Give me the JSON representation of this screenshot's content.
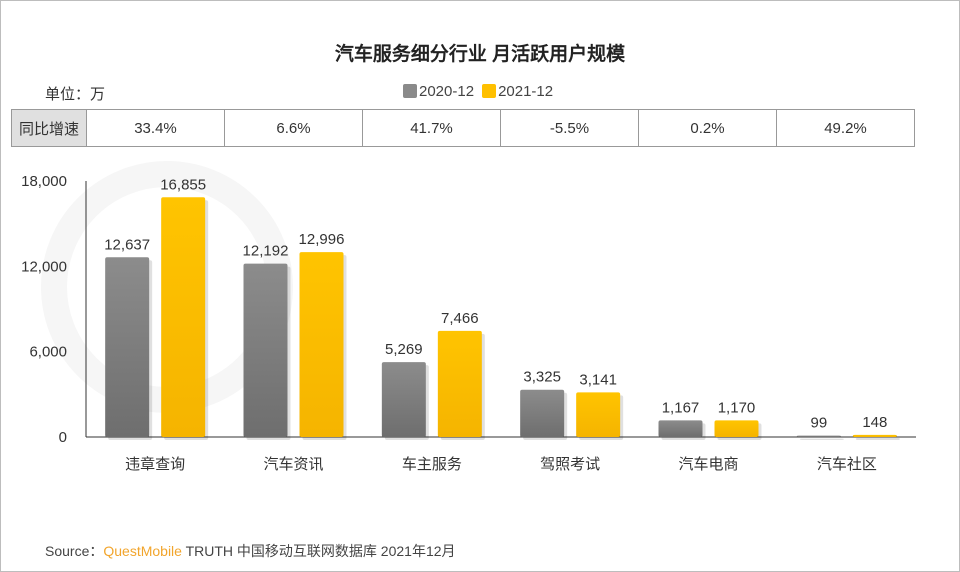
{
  "title": "汽车服务细分行业 月活跃用户规模",
  "unit": "单位：万",
  "growth_label": "同比增速",
  "growth": [
    "33.4%",
    "6.6%",
    "41.7%",
    "-5.5%",
    "0.2%",
    "49.2%"
  ],
  "watermark": "QUEST MOBILE",
  "source": {
    "prefix": "Source：",
    "brand": "QuestMobile",
    "rest": "TRUTH 中国移动互联网数据库 2021年12月"
  },
  "chart_data": {
    "type": "bar",
    "title": "汽车服务细分行业 月活跃用户规模",
    "categories": [
      "违章查询",
      "汽车资讯",
      "车主服务",
      "驾照考试",
      "汽车电商",
      "汽车社区"
    ],
    "series": [
      {
        "name": "2020-12",
        "color": "#8a8a8a",
        "values": [
          12637,
          12192,
          5269,
          3325,
          1167,
          99
        ],
        "labels": [
          "12,637",
          "12,192",
          "5,269",
          "3,325",
          "1,167",
          "99"
        ]
      },
      {
        "name": "2021-12",
        "color": "#ffc000",
        "values": [
          16855,
          12996,
          7466,
          3141,
          1170,
          148
        ],
        "labels": [
          "16,855",
          "12,996",
          "7,466",
          "3,141",
          "1,170",
          "148"
        ]
      }
    ],
    "ylim": [
      0,
      18000
    ],
    "yticks": [
      0,
      6000,
      12000,
      18000
    ],
    "ytick_labels": [
      "0",
      "6,000",
      "12,000",
      "18,000"
    ],
    "grid": false,
    "legend": "top"
  }
}
